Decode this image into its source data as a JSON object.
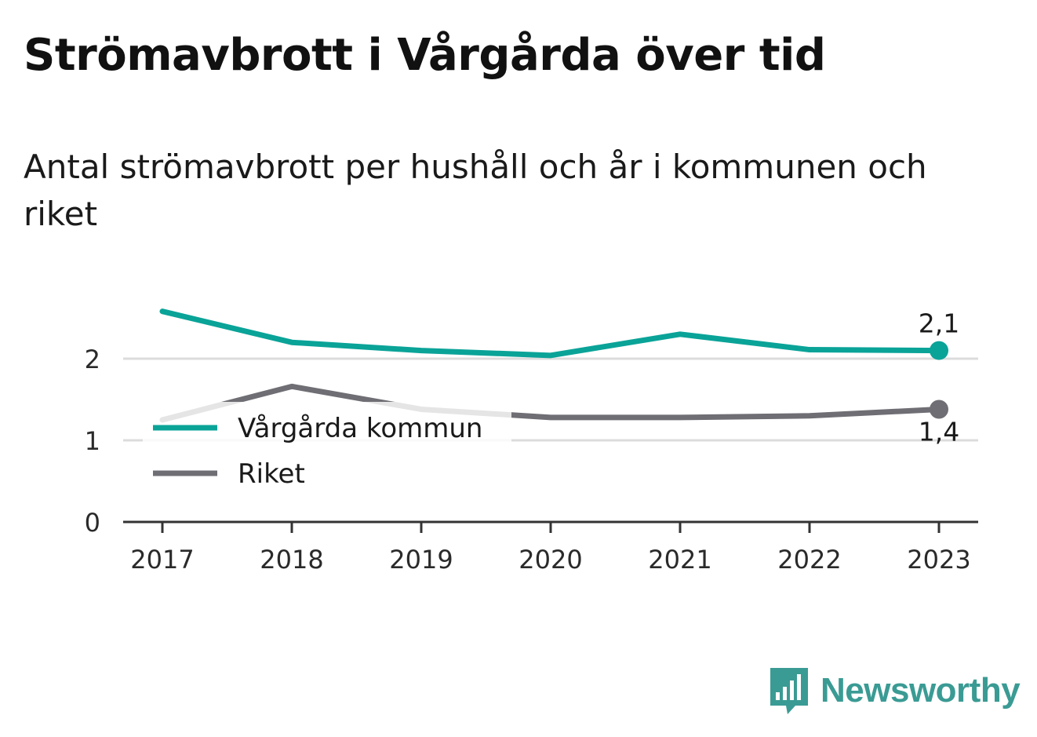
{
  "title": "Strömavbrott i Vårgårda över tid",
  "subtitle": "Antal strömavbrott per hushåll och år i kommunen och riket",
  "brand": {
    "name": "Newsworthy"
  },
  "colors": {
    "kommun": "#0aa398",
    "riket": "#6e6e74",
    "grid": "#dcdcdc",
    "axis": "#333333",
    "brand": "#3a9b94"
  },
  "chart_data": {
    "type": "line",
    "x": [
      "2017",
      "2018",
      "2019",
      "2020",
      "2021",
      "2022",
      "2023"
    ],
    "ylim": [
      0,
      2.6
    ],
    "yticks": [
      0,
      1,
      2
    ],
    "ytick_labels": [
      "0",
      "1",
      "2"
    ],
    "grid": true,
    "legend": "top-left",
    "series": [
      {
        "name": "Vårgårda kommun",
        "values": [
          2.58,
          2.2,
          2.1,
          2.04,
          2.3,
          2.11,
          2.1
        ],
        "end_label": "2,1"
      },
      {
        "name": "Riket",
        "values": [
          1.25,
          1.66,
          1.38,
          1.28,
          1.28,
          1.3,
          1.38
        ],
        "end_label": "1,4"
      }
    ]
  }
}
